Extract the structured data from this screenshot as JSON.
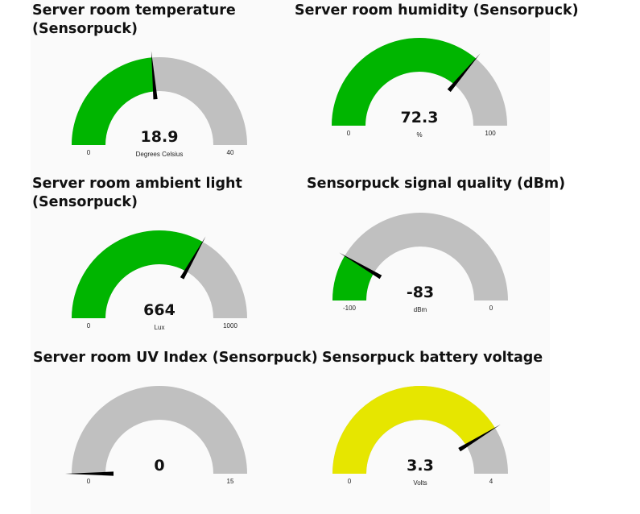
{
  "colors": {
    "track": "#c0c0c0",
    "green": "#00b500",
    "yellow": "#e6e600",
    "needle": "#000000",
    "panel": "#fafafa"
  },
  "gauges": [
    {
      "title_lines": [
        "Server room temperature",
        "(Sensorpuck)"
      ],
      "value": 18.9,
      "value_text": "18.9",
      "min": 0,
      "max": 40,
      "min_text": "0",
      "max_text": "40",
      "unit": "Degrees Celsius",
      "color": "#00b500"
    },
    {
      "title_lines": [
        "Server room humidity (Sensorpuck)"
      ],
      "value": 72.3,
      "value_text": "72.3",
      "min": 0,
      "max": 100,
      "min_text": "0",
      "max_text": "100",
      "unit": "%",
      "color": "#00b500"
    },
    {
      "title_lines": [
        "Server room ambient light",
        "(Sensorpuck)"
      ],
      "value": 664,
      "value_text": "664",
      "min": 0,
      "max": 1000,
      "min_text": "0",
      "max_text": "1000",
      "unit": "Lux",
      "color": "#00b500"
    },
    {
      "title_lines": [
        "Sensorpuck signal quality (dBm)"
      ],
      "value": -83,
      "value_text": "-83",
      "min": -100,
      "max": 0,
      "min_text": "-100",
      "max_text": "0",
      "unit": "dBm",
      "color": "#00b500"
    },
    {
      "title_lines": [
        "Server room UV Index (Sensorpuck)"
      ],
      "value": 0,
      "value_text": "0",
      "min": 0,
      "max": 15,
      "min_text": "0",
      "max_text": "15",
      "unit": "",
      "color": "#00b500"
    },
    {
      "title_lines": [
        "Sensorpuck battery voltage"
      ],
      "value": 3.3,
      "value_text": "3.3",
      "min": 0,
      "max": 4,
      "min_text": "0",
      "max_text": "4",
      "unit": "Volts",
      "color": "#e6e600"
    }
  ]
}
